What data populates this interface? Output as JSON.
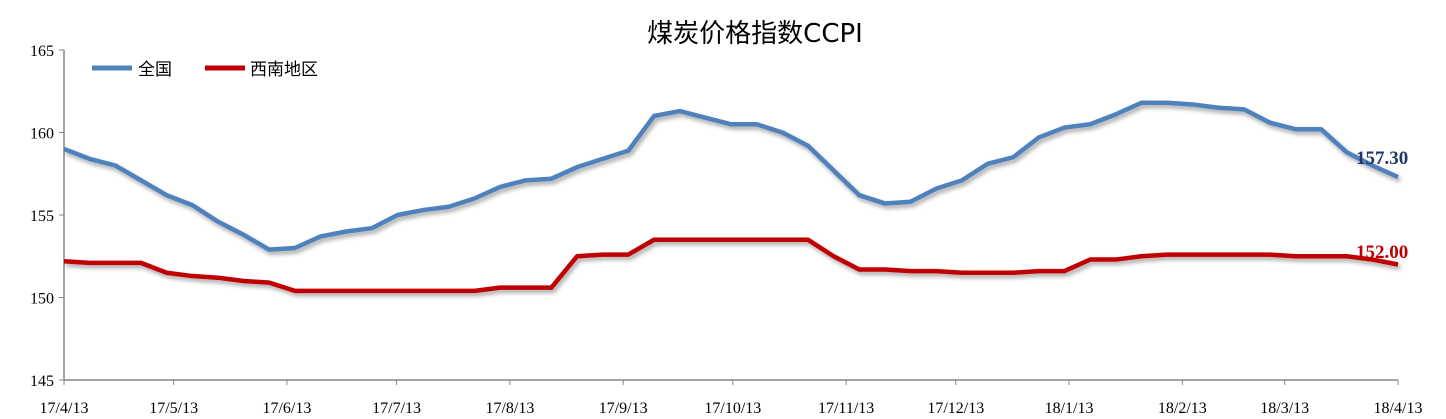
{
  "chart_data": {
    "type": "line",
    "title": "煤炭价格指数CCPI",
    "xlabel": "",
    "ylabel": "",
    "ylim": [
      145,
      165
    ],
    "yticks": [
      145,
      150,
      155,
      160,
      165
    ],
    "x_tick_labels": [
      "17/4/13",
      "17/5/13",
      "17/6/13",
      "17/7/13",
      "17/8/13",
      "17/9/13",
      "17/10/13",
      "17/11/13",
      "17/12/13",
      "18/1/13",
      "18/2/13",
      "18/3/13",
      "18/4/13"
    ],
    "x_range": [
      "17/4/13",
      "18/4/13"
    ],
    "grid": false,
    "legend_position": "top-left",
    "series": [
      {
        "name": "全国",
        "color": "#4F81BD",
        "end_label": "157.30",
        "end_label_color": "#1F3864",
        "values": [
          159.0,
          158.4,
          158.0,
          157.1,
          156.2,
          155.6,
          154.6,
          153.8,
          152.9,
          153.0,
          153.7,
          154.0,
          154.2,
          155.0,
          155.3,
          155.5,
          156.0,
          156.7,
          157.1,
          157.2,
          157.9,
          158.4,
          158.9,
          161.0,
          161.3,
          160.9,
          160.5,
          160.5,
          160.0,
          159.2,
          157.7,
          156.2,
          155.7,
          155.8,
          156.6,
          157.1,
          158.1,
          158.5,
          159.7,
          160.3,
          160.5,
          161.1,
          161.8,
          161.8,
          161.7,
          161.5,
          161.4,
          160.6,
          160.2,
          160.2,
          158.8,
          158.0,
          157.3
        ]
      },
      {
        "name": "西南地区",
        "color": "#C00000",
        "end_label": "152.00",
        "end_label_color": "#C00000",
        "values": [
          152.2,
          152.1,
          152.1,
          152.1,
          151.5,
          151.3,
          151.2,
          151.0,
          150.9,
          150.4,
          150.4,
          150.4,
          150.4,
          150.4,
          150.4,
          150.4,
          150.4,
          150.6,
          150.6,
          150.6,
          152.5,
          152.6,
          152.6,
          153.5,
          153.5,
          153.5,
          153.5,
          153.5,
          153.5,
          153.5,
          152.5,
          151.7,
          151.7,
          151.6,
          151.6,
          151.5,
          151.5,
          151.5,
          151.6,
          151.6,
          152.3,
          152.3,
          152.5,
          152.6,
          152.6,
          152.6,
          152.6,
          152.6,
          152.5,
          152.5,
          152.5,
          152.3,
          152.0
        ]
      }
    ]
  }
}
